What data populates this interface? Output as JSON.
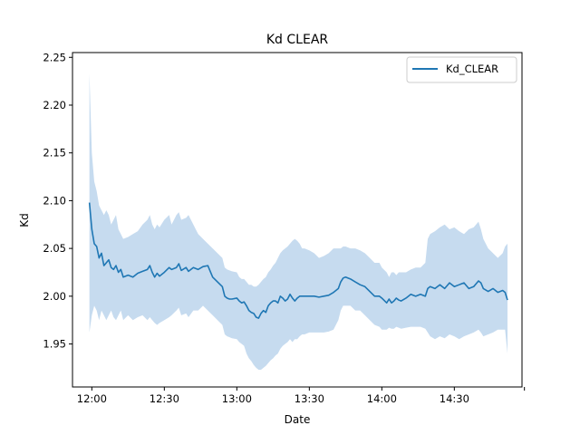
{
  "chart_data": {
    "type": "line",
    "title": "Kd CLEAR",
    "xlabel": "Date",
    "ylabel": "Kd",
    "x_unit": "time",
    "xlim": [
      "11:52",
      "14:58"
    ],
    "ylim": [
      1.905,
      2.255
    ],
    "x_ticks": [
      "12:00",
      "12:30",
      "13:00",
      "13:30",
      "14:00",
      "14:30"
    ],
    "y_ticks": [
      "1.95",
      "2.00",
      "2.05",
      "2.10",
      "2.15",
      "2.20",
      "2.25"
    ],
    "grid": false,
    "legend": {
      "position": "top-right",
      "entries": [
        "Kd_CLEAR"
      ]
    },
    "series": [
      {
        "name": "Kd_CLEAR",
        "color": "#1f77b4",
        "band_color": "#c6dbef",
        "points": [
          {
            "x": "11:59",
            "y": 2.098,
            "lo": 1.962,
            "hi": 2.233
          },
          {
            "x": "12:00",
            "y": 2.07,
            "lo": 1.98,
            "hi": 2.15
          },
          {
            "x": "12:01",
            "y": 2.055,
            "lo": 1.99,
            "hi": 2.12
          },
          {
            "x": "12:02",
            "y": 2.052,
            "lo": 1.985,
            "hi": 2.11
          },
          {
            "x": "12:03",
            "y": 2.04,
            "lo": 1.975,
            "hi": 2.095
          },
          {
            "x": "12:04",
            "y": 2.045,
            "lo": 1.985,
            "hi": 2.09
          },
          {
            "x": "12:05",
            "y": 2.032,
            "lo": 1.98,
            "hi": 2.085
          },
          {
            "x": "12:06",
            "y": 2.035,
            "lo": 1.975,
            "hi": 2.09
          },
          {
            "x": "12:07",
            "y": 2.038,
            "lo": 1.98,
            "hi": 2.085
          },
          {
            "x": "12:08",
            "y": 2.03,
            "lo": 1.985,
            "hi": 2.075
          },
          {
            "x": "12:09",
            "y": 2.028,
            "lo": 1.978,
            "hi": 2.08
          },
          {
            "x": "12:10",
            "y": 2.032,
            "lo": 1.975,
            "hi": 2.085
          },
          {
            "x": "12:11",
            "y": 2.025,
            "lo": 1.98,
            "hi": 2.07
          },
          {
            "x": "12:12",
            "y": 2.028,
            "lo": 1.985,
            "hi": 2.065
          },
          {
            "x": "12:13",
            "y": 2.02,
            "lo": 1.975,
            "hi": 2.06
          },
          {
            "x": "12:15",
            "y": 2.022,
            "lo": 1.98,
            "hi": 2.062
          },
          {
            "x": "12:17",
            "y": 2.02,
            "lo": 1.975,
            "hi": 2.065
          },
          {
            "x": "12:19",
            "y": 2.024,
            "lo": 1.978,
            "hi": 2.068
          },
          {
            "x": "12:21",
            "y": 2.026,
            "lo": 1.98,
            "hi": 2.075
          },
          {
            "x": "12:23",
            "y": 2.028,
            "lo": 1.975,
            "hi": 2.08
          },
          {
            "x": "12:24",
            "y": 2.032,
            "lo": 1.978,
            "hi": 2.085
          },
          {
            "x": "12:25",
            "y": 2.025,
            "lo": 1.975,
            "hi": 2.075
          },
          {
            "x": "12:26",
            "y": 2.02,
            "lo": 1.972,
            "hi": 2.07
          },
          {
            "x": "12:27",
            "y": 2.024,
            "lo": 1.97,
            "hi": 2.075
          },
          {
            "x": "12:28",
            "y": 2.021,
            "lo": 1.972,
            "hi": 2.072
          },
          {
            "x": "12:30",
            "y": 2.025,
            "lo": 1.975,
            "hi": 2.08
          },
          {
            "x": "12:32",
            "y": 2.03,
            "lo": 1.978,
            "hi": 2.085
          },
          {
            "x": "12:33",
            "y": 2.028,
            "lo": 1.98,
            "hi": 2.075
          },
          {
            "x": "12:35",
            "y": 2.03,
            "lo": 1.985,
            "hi": 2.085
          },
          {
            "x": "12:36",
            "y": 2.034,
            "lo": 1.988,
            "hi": 2.088
          },
          {
            "x": "12:37",
            "y": 2.027,
            "lo": 1.98,
            "hi": 2.08
          },
          {
            "x": "12:39",
            "y": 2.03,
            "lo": 1.982,
            "hi": 2.082
          },
          {
            "x": "12:40",
            "y": 2.026,
            "lo": 1.978,
            "hi": 2.085
          },
          {
            "x": "12:42",
            "y": 2.03,
            "lo": 1.985,
            "hi": 2.075
          },
          {
            "x": "12:44",
            "y": 2.028,
            "lo": 1.985,
            "hi": 2.065
          },
          {
            "x": "12:46",
            "y": 2.031,
            "lo": 1.99,
            "hi": 2.06
          },
          {
            "x": "12:48",
            "y": 2.032,
            "lo": 1.985,
            "hi": 2.055
          },
          {
            "x": "12:50",
            "y": 2.02,
            "lo": 1.98,
            "hi": 2.05
          },
          {
            "x": "12:52",
            "y": 2.015,
            "lo": 1.975,
            "hi": 2.045
          },
          {
            "x": "12:54",
            "y": 2.01,
            "lo": 1.97,
            "hi": 2.04
          },
          {
            "x": "12:55",
            "y": 2.0,
            "lo": 1.96,
            "hi": 2.03
          },
          {
            "x": "12:56",
            "y": 1.998,
            "lo": 1.958,
            "hi": 2.028
          },
          {
            "x": "12:57",
            "y": 1.997,
            "lo": 1.957,
            "hi": 2.027
          },
          {
            "x": "12:58",
            "y": 1.997,
            "lo": 1.956,
            "hi": 2.026
          },
          {
            "x": "13:00",
            "y": 1.998,
            "lo": 1.955,
            "hi": 2.025
          },
          {
            "x": "13:01",
            "y": 1.995,
            "lo": 1.952,
            "hi": 2.02
          },
          {
            "x": "13:02",
            "y": 1.993,
            "lo": 1.95,
            "hi": 2.018
          },
          {
            "x": "13:03",
            "y": 1.994,
            "lo": 1.948,
            "hi": 2.018
          },
          {
            "x": "13:04",
            "y": 1.99,
            "lo": 1.94,
            "hi": 2.015
          },
          {
            "x": "13:05",
            "y": 1.985,
            "lo": 1.935,
            "hi": 2.012
          },
          {
            "x": "13:06",
            "y": 1.983,
            "lo": 1.932,
            "hi": 2.012
          },
          {
            "x": "13:07",
            "y": 1.982,
            "lo": 1.928,
            "hi": 2.01
          },
          {
            "x": "13:08",
            "y": 1.978,
            "lo": 1.925,
            "hi": 2.01
          },
          {
            "x": "13:09",
            "y": 1.977,
            "lo": 1.923,
            "hi": 2.012
          },
          {
            "x": "13:10",
            "y": 1.982,
            "lo": 1.923,
            "hi": 2.015
          },
          {
            "x": "13:11",
            "y": 1.985,
            "lo": 1.925,
            "hi": 2.018
          },
          {
            "x": "13:12",
            "y": 1.983,
            "lo": 1.927,
            "hi": 2.02
          },
          {
            "x": "13:13",
            "y": 1.99,
            "lo": 1.93,
            "hi": 2.025
          },
          {
            "x": "13:14",
            "y": 1.993,
            "lo": 1.933,
            "hi": 2.028
          },
          {
            "x": "13:15",
            "y": 1.995,
            "lo": 1.935,
            "hi": 2.032
          },
          {
            "x": "13:16",
            "y": 1.995,
            "lo": 1.938,
            "hi": 2.035
          },
          {
            "x": "13:17",
            "y": 1.993,
            "lo": 1.94,
            "hi": 2.04
          },
          {
            "x": "13:18",
            "y": 2.0,
            "lo": 1.945,
            "hi": 2.045
          },
          {
            "x": "13:19",
            "y": 1.998,
            "lo": 1.948,
            "hi": 2.048
          },
          {
            "x": "13:20",
            "y": 1.995,
            "lo": 1.95,
            "hi": 2.05
          },
          {
            "x": "13:21",
            "y": 1.997,
            "lo": 1.952,
            "hi": 2.052
          },
          {
            "x": "13:22",
            "y": 2.002,
            "lo": 1.955,
            "hi": 2.055
          },
          {
            "x": "13:23",
            "y": 1.998,
            "lo": 1.952,
            "hi": 2.058
          },
          {
            "x": "13:24",
            "y": 1.995,
            "lo": 1.955,
            "hi": 2.06
          },
          {
            "x": "13:25",
            "y": 1.998,
            "lo": 1.955,
            "hi": 2.058
          },
          {
            "x": "13:26",
            "y": 2.0,
            "lo": 1.958,
            "hi": 2.055
          },
          {
            "x": "13:27",
            "y": 2.0,
            "lo": 1.96,
            "hi": 2.05
          },
          {
            "x": "13:28",
            "y": 2.0,
            "lo": 1.96,
            "hi": 2.05
          },
          {
            "x": "13:30",
            "y": 2.0,
            "lo": 1.962,
            "hi": 2.048
          },
          {
            "x": "13:32",
            "y": 2.0,
            "lo": 1.962,
            "hi": 2.045
          },
          {
            "x": "13:34",
            "y": 1.999,
            "lo": 1.962,
            "hi": 2.04
          },
          {
            "x": "13:36",
            "y": 2.0,
            "lo": 1.962,
            "hi": 2.042
          },
          {
            "x": "13:38",
            "y": 2.001,
            "lo": 1.963,
            "hi": 2.045
          },
          {
            "x": "13:40",
            "y": 2.004,
            "lo": 1.965,
            "hi": 2.05
          },
          {
            "x": "13:42",
            "y": 2.008,
            "lo": 1.975,
            "hi": 2.05
          },
          {
            "x": "13:43",
            "y": 2.015,
            "lo": 1.985,
            "hi": 2.05
          },
          {
            "x": "13:44",
            "y": 2.019,
            "lo": 1.99,
            "hi": 2.052
          },
          {
            "x": "13:45",
            "y": 2.02,
            "lo": 1.99,
            "hi": 2.052
          },
          {
            "x": "13:47",
            "y": 2.018,
            "lo": 1.99,
            "hi": 2.05
          },
          {
            "x": "13:49",
            "y": 2.015,
            "lo": 1.985,
            "hi": 2.05
          },
          {
            "x": "13:51",
            "y": 2.012,
            "lo": 1.985,
            "hi": 2.048
          },
          {
            "x": "13:53",
            "y": 2.01,
            "lo": 1.98,
            "hi": 2.045
          },
          {
            "x": "13:55",
            "y": 2.005,
            "lo": 1.975,
            "hi": 2.04
          },
          {
            "x": "13:57",
            "y": 2.0,
            "lo": 1.97,
            "hi": 2.035
          },
          {
            "x": "13:59",
            "y": 2.0,
            "lo": 1.968,
            "hi": 2.035
          },
          {
            "x": "14:00",
            "y": 1.998,
            "lo": 1.965,
            "hi": 2.03
          },
          {
            "x": "14:02",
            "y": 1.993,
            "lo": 1.965,
            "hi": 2.025
          },
          {
            "x": "14:03",
            "y": 1.997,
            "lo": 1.967,
            "hi": 2.02
          },
          {
            "x": "14:04",
            "y": 1.993,
            "lo": 1.966,
            "hi": 2.025
          },
          {
            "x": "14:05",
            "y": 1.995,
            "lo": 1.966,
            "hi": 2.025
          },
          {
            "x": "14:06",
            "y": 1.998,
            "lo": 1.968,
            "hi": 2.022
          },
          {
            "x": "14:07",
            "y": 1.996,
            "lo": 1.967,
            "hi": 2.025
          },
          {
            "x": "14:08",
            "y": 1.995,
            "lo": 1.966,
            "hi": 2.025
          },
          {
            "x": "14:10",
            "y": 1.998,
            "lo": 1.967,
            "hi": 2.025
          },
          {
            "x": "14:12",
            "y": 2.002,
            "lo": 1.968,
            "hi": 2.028
          },
          {
            "x": "14:14",
            "y": 2.0,
            "lo": 1.968,
            "hi": 2.03
          },
          {
            "x": "14:16",
            "y": 2.002,
            "lo": 1.968,
            "hi": 2.03
          },
          {
            "x": "14:18",
            "y": 2.0,
            "lo": 1.966,
            "hi": 2.035
          },
          {
            "x": "14:19",
            "y": 2.008,
            "lo": 1.962,
            "hi": 2.06
          },
          {
            "x": "14:20",
            "y": 2.01,
            "lo": 1.958,
            "hi": 2.065
          },
          {
            "x": "14:22",
            "y": 2.008,
            "lo": 1.955,
            "hi": 2.068
          },
          {
            "x": "14:24",
            "y": 2.012,
            "lo": 1.958,
            "hi": 2.072
          },
          {
            "x": "14:26",
            "y": 2.008,
            "lo": 1.956,
            "hi": 2.075
          },
          {
            "x": "14:28",
            "y": 2.014,
            "lo": 1.96,
            "hi": 2.07
          },
          {
            "x": "14:30",
            "y": 2.01,
            "lo": 1.958,
            "hi": 2.072
          },
          {
            "x": "14:32",
            "y": 2.012,
            "lo": 1.955,
            "hi": 2.068
          },
          {
            "x": "14:34",
            "y": 2.014,
            "lo": 1.958,
            "hi": 2.065
          },
          {
            "x": "14:36",
            "y": 2.008,
            "lo": 1.96,
            "hi": 2.07
          },
          {
            "x": "14:38",
            "y": 2.01,
            "lo": 1.962,
            "hi": 2.072
          },
          {
            "x": "14:40",
            "y": 2.016,
            "lo": 1.965,
            "hi": 2.078
          },
          {
            "x": "14:41",
            "y": 2.014,
            "lo": 1.962,
            "hi": 2.07
          },
          {
            "x": "14:42",
            "y": 2.008,
            "lo": 1.958,
            "hi": 2.06
          },
          {
            "x": "14:44",
            "y": 2.005,
            "lo": 1.96,
            "hi": 2.05
          },
          {
            "x": "14:46",
            "y": 2.008,
            "lo": 1.962,
            "hi": 2.045
          },
          {
            "x": "14:48",
            "y": 2.004,
            "lo": 1.965,
            "hi": 2.04
          },
          {
            "x": "14:50",
            "y": 2.006,
            "lo": 1.965,
            "hi": 2.045
          },
          {
            "x": "14:51",
            "y": 2.004,
            "lo": 1.965,
            "hi": 2.052
          },
          {
            "x": "14:52",
            "y": 1.996,
            "lo": 1.94,
            "hi": 2.055
          }
        ]
      }
    ]
  }
}
